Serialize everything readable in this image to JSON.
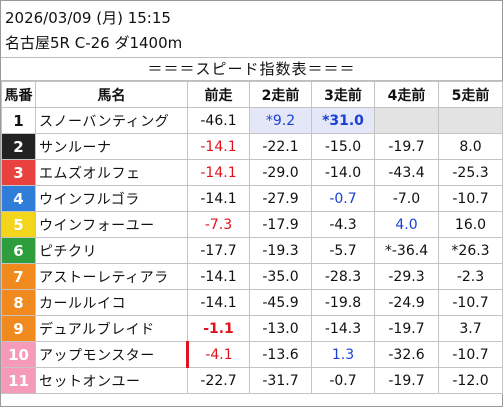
{
  "header": {
    "datetime": "2026/03/09 (月) 15:15",
    "race": "名古屋5R C-26 ダ1400m"
  },
  "banner": "＝＝＝スピード指数表＝＝＝",
  "columns": [
    "馬番",
    "馬名",
    "前走",
    "2走前",
    "3走前",
    "4走前",
    "5走前"
  ],
  "gate_colors": [
    "#ffffff",
    "#222222",
    "#e8413f",
    "#2f7dd8",
    "#f3d61b",
    "#2e9d3b",
    "#f08a1e",
    "#f08a1e",
    "#f08a1e",
    "#f59ab8",
    "#f59ab8"
  ],
  "rows": [
    {
      "no": "1",
      "no_fg": "#111111",
      "name": "スノーバンティング",
      "cells": [
        {
          "v": "-46.1",
          "c": "black"
        },
        {
          "v": "*9.2",
          "c": "blue",
          "hl": true
        },
        {
          "v": "*31.0",
          "c": "blue",
          "bold": true,
          "hl": true
        },
        {
          "v": "",
          "c": "black",
          "gray": true
        },
        {
          "v": "",
          "c": "black",
          "gray": true
        }
      ]
    },
    {
      "no": "2",
      "no_fg": "#ffffff",
      "name": "サンルーナ",
      "cells": [
        {
          "v": "-14.1",
          "c": "red"
        },
        {
          "v": "-22.1",
          "c": "black"
        },
        {
          "v": "-15.0",
          "c": "black"
        },
        {
          "v": "-19.7",
          "c": "black"
        },
        {
          "v": "8.0",
          "c": "black"
        }
      ]
    },
    {
      "no": "3",
      "no_fg": "#ffffff",
      "name": "エムズオルフェ",
      "cells": [
        {
          "v": "-14.1",
          "c": "red"
        },
        {
          "v": "-29.0",
          "c": "black"
        },
        {
          "v": "-14.0",
          "c": "black"
        },
        {
          "v": "-43.4",
          "c": "black"
        },
        {
          "v": "-25.3",
          "c": "black"
        }
      ]
    },
    {
      "no": "4",
      "no_fg": "#ffffff",
      "name": "ウインフルゴラ",
      "cells": [
        {
          "v": "-14.1",
          "c": "black"
        },
        {
          "v": "-27.9",
          "c": "black"
        },
        {
          "v": "-0.7",
          "c": "blue"
        },
        {
          "v": "-7.0",
          "c": "black"
        },
        {
          "v": "-10.7",
          "c": "black"
        }
      ]
    },
    {
      "no": "5",
      "no_fg": "#ffffff",
      "name": "ウインフォーユー",
      "cells": [
        {
          "v": "-7.3",
          "c": "red"
        },
        {
          "v": "-17.9",
          "c": "black"
        },
        {
          "v": "-4.3",
          "c": "black"
        },
        {
          "v": "4.0",
          "c": "blue"
        },
        {
          "v": "16.0",
          "c": "black"
        }
      ]
    },
    {
      "no": "6",
      "no_fg": "#ffffff",
      "name": "ピチクリ",
      "cells": [
        {
          "v": "-17.7",
          "c": "black"
        },
        {
          "v": "-19.3",
          "c": "black"
        },
        {
          "v": "-5.7",
          "c": "black"
        },
        {
          "v": "*-36.4",
          "c": "black"
        },
        {
          "v": "*26.3",
          "c": "black"
        }
      ]
    },
    {
      "no": "7",
      "no_fg": "#ffffff",
      "name": "アストーレティアラ",
      "cells": [
        {
          "v": "-14.1",
          "c": "black"
        },
        {
          "v": "-35.0",
          "c": "black"
        },
        {
          "v": "-28.3",
          "c": "black"
        },
        {
          "v": "-29.3",
          "c": "black"
        },
        {
          "v": "-2.3",
          "c": "black"
        }
      ]
    },
    {
      "no": "8",
      "no_fg": "#ffffff",
      "name": "カールルイコ",
      "cells": [
        {
          "v": "-14.1",
          "c": "black"
        },
        {
          "v": "-45.9",
          "c": "black"
        },
        {
          "v": "-19.8",
          "c": "black"
        },
        {
          "v": "-24.9",
          "c": "black"
        },
        {
          "v": "-10.7",
          "c": "black"
        }
      ]
    },
    {
      "no": "9",
      "no_fg": "#ffffff",
      "name": "デュアルブレイド",
      "cells": [
        {
          "v": "-1.1",
          "c": "red",
          "bold": true
        },
        {
          "v": "-13.0",
          "c": "black"
        },
        {
          "v": "-14.3",
          "c": "black"
        },
        {
          "v": "-19.7",
          "c": "black"
        },
        {
          "v": "3.7",
          "c": "black"
        }
      ]
    },
    {
      "no": "10",
      "no_fg": "#ffffff",
      "name": "アップモンスター",
      "cells": [
        {
          "v": "-4.1",
          "c": "red",
          "redbar": true
        },
        {
          "v": "-13.6",
          "c": "black"
        },
        {
          "v": "1.3",
          "c": "blue"
        },
        {
          "v": "-32.6",
          "c": "black"
        },
        {
          "v": "-10.7",
          "c": "black"
        }
      ]
    },
    {
      "no": "11",
      "no_fg": "#ffffff",
      "name": "セットオンユー",
      "cells": [
        {
          "v": "-22.7",
          "c": "black"
        },
        {
          "v": "-31.7",
          "c": "black"
        },
        {
          "v": "-0.7",
          "c": "black"
        },
        {
          "v": "-19.7",
          "c": "black"
        },
        {
          "v": "-12.0",
          "c": "black"
        }
      ]
    }
  ]
}
